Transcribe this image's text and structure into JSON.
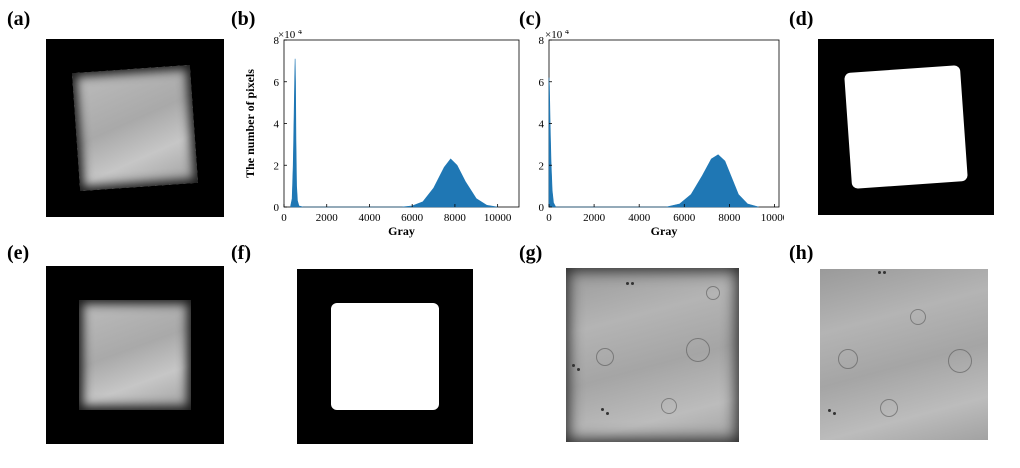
{
  "panel_labels": {
    "a": "(a)",
    "b": "(b)",
    "c": "(c)",
    "d": "(d)",
    "e": "(e)",
    "f": "(f)",
    "g": "(g)",
    "h": "(h)"
  },
  "colors": {
    "bar": "#1f77b4",
    "background": "#ffffff",
    "image_background": "#000000"
  },
  "chart_data": [
    {
      "panel": "(b)",
      "type": "area",
      "xlabel": "Gray",
      "ylabel": "The number of pixels",
      "y_multiplier": "×10^4",
      "xlim": [
        0,
        11000
      ],
      "ylim": [
        0,
        8
      ],
      "x_ticks": [
        0,
        2000,
        4000,
        6000,
        8000,
        10000
      ],
      "x_tick_labels": [
        "0",
        "2000",
        "4000",
        "6000",
        "8000",
        "10000"
      ],
      "y_ticks": [
        0,
        2,
        4,
        6,
        8
      ],
      "y_tick_labels": [
        "0",
        "2",
        "4",
        "6",
        "8"
      ],
      "series": [
        {
          "x": [
            300,
            380,
            430,
            470,
            500,
            520,
            540,
            560,
            590,
            630,
            700,
            900,
            5500,
            6000,
            6500,
            7000,
            7500,
            7800,
            8100,
            8500,
            9000,
            9500,
            10000
          ],
          "values": [
            0,
            0.4,
            2.0,
            4.3,
            6.2,
            7.1,
            6.0,
            3.2,
            1.0,
            0.3,
            0.05,
            0,
            0,
            0.05,
            0.25,
            0.9,
            1.9,
            2.3,
            2.0,
            1.2,
            0.4,
            0.08,
            0
          ]
        }
      ]
    },
    {
      "panel": "(c)",
      "type": "area",
      "xlabel": "Gray",
      "ylabel": "The number of pixels",
      "y_multiplier": "×10^4",
      "xlim": [
        0,
        10200
      ],
      "ylim": [
        0,
        8
      ],
      "x_ticks": [
        0,
        2000,
        4000,
        6000,
        8000,
        10000
      ],
      "x_tick_labels": [
        "0",
        "2000",
        "4000",
        "6000",
        "8000",
        "10000"
      ],
      "y_ticks": [
        0,
        2,
        4,
        6,
        8
      ],
      "y_tick_labels": [
        "0",
        "2",
        "4",
        "6",
        "8"
      ],
      "series": [
        {
          "x": [
            0,
            20,
            50,
            90,
            140,
            200,
            300,
            5200,
            5800,
            6300,
            6800,
            7200,
            7500,
            7800,
            8100,
            8400,
            8800,
            9300
          ],
          "values": [
            6.2,
            5.8,
            4.0,
            2.2,
            0.8,
            0.2,
            0,
            0,
            0.15,
            0.6,
            1.5,
            2.3,
            2.5,
            2.2,
            1.4,
            0.6,
            0.15,
            0
          ]
        }
      ]
    }
  ]
}
